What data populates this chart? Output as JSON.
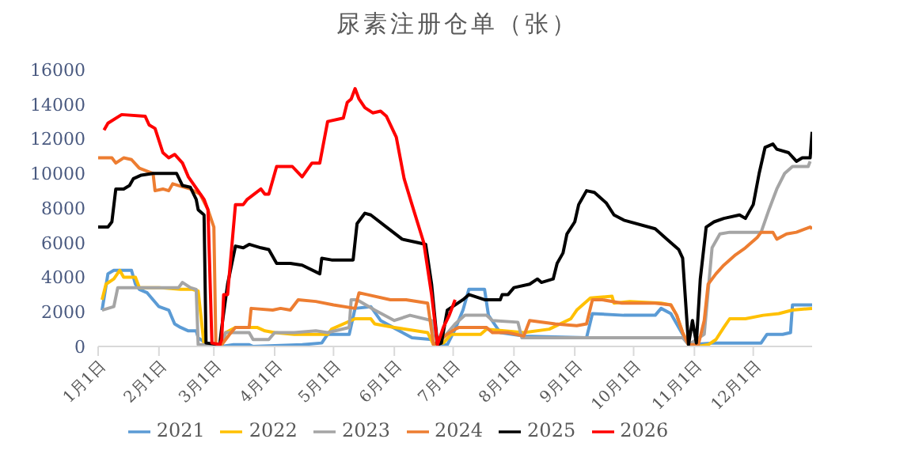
{
  "chart_data": {
    "type": "line",
    "title": "尿素注册仓单（张）",
    "xlim": [
      "--01-01",
      "--12-31"
    ],
    "xticks": [
      {
        "value": "--01-01",
        "label": "1月1日"
      },
      {
        "value": "--02-01",
        "label": "2月1日"
      },
      {
        "value": "--03-01",
        "label": "3月1日"
      },
      {
        "value": "--04-01",
        "label": "4月1日"
      },
      {
        "value": "--05-01",
        "label": "5月1日"
      },
      {
        "value": "--06-01",
        "label": "6月1日"
      },
      {
        "value": "--07-01",
        "label": "7月1日"
      },
      {
        "value": "--08-01",
        "label": "8月1日"
      },
      {
        "value": "--09-01",
        "label": "9月1日"
      },
      {
        "value": "--10-01",
        "label": "10月1日"
      },
      {
        "value": "--11-01",
        "label": "11月1日"
      },
      {
        "value": "--12-01",
        "label": "12月1日"
      }
    ],
    "ylim": [
      0,
      16000
    ],
    "yticks": [
      0,
      2000,
      4000,
      6000,
      8000,
      10000,
      12000,
      14000,
      16000
    ],
    "legend": "bottom",
    "marker": "none",
    "line_style": "solid",
    "series": [
      {
        "name": "2021",
        "color": "#5b9bd5",
        "x": [
          "--01-03",
          "--01-06",
          "--01-09",
          "--01-18",
          "--01-20",
          "--01-22",
          "--01-26",
          "--01-29",
          "--02-01",
          "--02-06",
          "--02-09",
          "--02-12",
          "--02-16",
          "--02-20",
          "--02-21",
          "--02-25",
          "--03-05",
          "--03-11",
          "--03-19",
          "--03-21",
          "--04-15",
          "--04-25",
          "--04-28",
          "--05-09",
          "--05-12",
          "--05-20",
          "--05-25",
          "--06-02",
          "--06-10",
          "--06-20",
          "--06-21",
          "--06-28",
          "--07-02",
          "--07-06",
          "--07-09",
          "--07-17",
          "--07-19",
          "--07-25",
          "--08-06",
          "--09-07",
          "--09-10",
          "--09-26",
          "--10-12",
          "--10-15",
          "--10-20",
          "--10-26",
          "--10-29",
          "--11-11",
          "--12-05",
          "--12-08",
          "--12-16",
          "--12-20",
          "--12-21",
          "--12-31"
        ],
        "values": [
          2100,
          4200,
          4400,
          4400,
          3600,
          3300,
          3100,
          2700,
          2300,
          2100,
          1300,
          1100,
          900,
          900,
          500,
          200,
          0,
          100,
          100,
          0,
          100,
          200,
          700,
          700,
          2200,
          2300,
          1500,
          1000,
          500,
          400,
          100,
          100,
          1000,
          2100,
          3300,
          3300,
          1800,
          800,
          600,
          500,
          1900,
          1800,
          1800,
          2200,
          1900,
          700,
          100,
          200,
          200,
          700,
          700,
          800,
          2400,
          2400
        ]
      },
      {
        "name": "2022",
        "color": "#ffc000",
        "x": [
          "--01-03",
          "--01-05",
          "--01-09",
          "--01-12",
          "--01-14",
          "--01-20",
          "--01-22",
          "--02-01",
          "--02-12",
          "--02-18",
          "--02-21",
          "--02-24",
          "--03-05",
          "--03-07",
          "--03-12",
          "--03-23",
          "--03-27",
          "--04-01",
          "--04-11",
          "--04-28",
          "--04-30",
          "--05-12",
          "--05-20",
          "--05-22",
          "--06-01",
          "--06-18",
          "--06-21",
          "--06-26",
          "--06-30",
          "--07-15",
          "--07-18",
          "--08-06",
          "--08-19",
          "--08-30",
          "--09-02",
          "--09-09",
          "--09-20",
          "--09-21",
          "--09-29",
          "--10-15",
          "--10-20",
          "--10-23",
          "--10-26",
          "--10-29",
          "--11-03",
          "--11-08",
          "--11-12",
          "--11-16",
          "--11-19",
          "--11-27",
          "--12-06",
          "--12-14",
          "--12-21",
          "--12-31"
        ],
        "values": [
          2700,
          3600,
          3900,
          4400,
          4000,
          4000,
          3400,
          3400,
          3300,
          3300,
          3200,
          100,
          100,
          800,
          1100,
          1100,
          900,
          800,
          700,
          700,
          1000,
          1600,
          1600,
          1300,
          1100,
          800,
          100,
          200,
          700,
          700,
          1000,
          800,
          1000,
          1600,
          2100,
          2800,
          2900,
          2500,
          2600,
          2500,
          2400,
          1800,
          800,
          100,
          0,
          100,
          400,
          1100,
          1600,
          1600,
          1800,
          1900,
          2100,
          2200
        ]
      },
      {
        "name": "2023",
        "color": "#a5a5a5",
        "x": [
          "--01-03",
          "--01-09",
          "--01-11",
          "--01-29",
          "--02-11",
          "--02-13",
          "--02-17",
          "--02-20",
          "--02-21",
          "--03-05",
          "--03-07",
          "--03-11",
          "--03-19",
          "--03-21",
          "--03-29",
          "--04-01",
          "--04-11",
          "--04-22",
          "--04-28",
          "--05-09",
          "--05-10",
          "--05-13",
          "--05-22",
          "--06-01",
          "--06-09",
          "--06-20",
          "--06-23",
          "--07-02",
          "--07-07",
          "--07-18",
          "--07-21",
          "--08-03",
          "--08-05",
          "--09-07",
          "--10-26",
          "--10-29",
          "--11-06",
          "--11-10",
          "--11-14",
          "--11-19",
          "--12-05",
          "--12-09",
          "--12-13",
          "--12-17",
          "--12-21",
          "--12-29",
          "--12-30"
        ],
        "values": [
          2100,
          2300,
          3400,
          3400,
          3400,
          3700,
          3400,
          3300,
          100,
          100,
          800,
          800,
          800,
          400,
          400,
          800,
          800,
          900,
          800,
          1100,
          2700,
          2700,
          2100,
          1500,
          1800,
          1500,
          100,
          1300,
          1800,
          1800,
          1500,
          1400,
          500,
          500,
          500,
          100,
          700,
          5700,
          6500,
          6600,
          6600,
          7900,
          9100,
          10000,
          10400,
          10400,
          10700
        ]
      },
      {
        "name": "2024",
        "color": "#ed7d31",
        "x": [
          "--01-01",
          "--01-08",
          "--01-10",
          "--01-14",
          "--01-18",
          "--01-22",
          "--01-29",
          "--01-30",
          "--02-03",
          "--02-06",
          "--02-08",
          "--02-11",
          "--02-17",
          "--02-22",
          "--02-26",
          "--03-01",
          "--03-02",
          "--03-05",
          "--03-09",
          "--03-12",
          "--03-19",
          "--03-20",
          "--03-31",
          "--04-04",
          "--04-09",
          "--04-13",
          "--04-22",
          "--05-01",
          "--05-12",
          "--05-14",
          "--05-18",
          "--05-30",
          "--06-07",
          "--06-18",
          "--06-21",
          "--06-28",
          "--07-02",
          "--07-04",
          "--07-18",
          "--07-21",
          "--07-29",
          "--08-06",
          "--08-09",
          "--08-22",
          "--09-02",
          "--09-07",
          "--09-10",
          "--09-15",
          "--09-25",
          "--10-12",
          "--10-20",
          "--10-23",
          "--10-26",
          "--10-29",
          "--11-03",
          "--11-06",
          "--11-08",
          "--11-12",
          "--11-16",
          "--11-22",
          "--11-27",
          "--12-03",
          "--12-05",
          "--12-11",
          "--12-13",
          "--12-18",
          "--12-23",
          "--12-30",
          "--12-31"
        ],
        "values": [
          10900,
          10900,
          10600,
          10900,
          10800,
          10300,
          10000,
          9000,
          9100,
          9000,
          9400,
          9300,
          9100,
          8800,
          7900,
          6900,
          200,
          100,
          700,
          1100,
          1100,
          2200,
          2100,
          2200,
          2100,
          2700,
          2600,
          2400,
          2200,
          3100,
          3000,
          2700,
          2700,
          2500,
          100,
          700,
          1000,
          1100,
          1100,
          800,
          800,
          600,
          1500,
          1300,
          1200,
          1300,
          2700,
          2700,
          2500,
          2500,
          2400,
          1800,
          800,
          100,
          100,
          1500,
          3600,
          4200,
          4700,
          5300,
          5700,
          6300,
          6600,
          6600,
          6200,
          6500,
          6600,
          6900,
          6800
        ]
      },
      {
        "name": "2025",
        "color": "#000000",
        "x": [
          "--01-01",
          "--01-06",
          "--01-08",
          "--01-10",
          "--01-14",
          "--01-17",
          "--01-19",
          "--01-23",
          "--01-29",
          "--02-10",
          "--02-13",
          "--02-17",
          "--02-20",
          "--02-21",
          "--02-24",
          "--02-25",
          "--03-04",
          "--03-05",
          "--03-08",
          "--03-12",
          "--03-16",
          "--03-19",
          "--03-25",
          "--03-29",
          "--04-02",
          "--04-09",
          "--04-15",
          "--04-24",
          "--04-25",
          "--04-30",
          "--05-11",
          "--05-13",
          "--05-17",
          "--05-20",
          "--05-28",
          "--06-05",
          "--06-13",
          "--06-17",
          "--06-20",
          "--06-23",
          "--06-25",
          "--06-28",
          "--07-06",
          "--07-09",
          "--07-17",
          "--07-25",
          "--07-26",
          "--07-29",
          "--08-01",
          "--08-09",
          "--08-13",
          "--08-15",
          "--08-21",
          "--08-23",
          "--08-26",
          "--08-28",
          "--09-01",
          "--09-03",
          "--09-07",
          "--09-11",
          "--09-17",
          "--09-21",
          "--09-26",
          "--10-12",
          "--10-18",
          "--10-24",
          "--10-26",
          "--10-29",
          "--10-31",
          "--11-02",
          "--11-04",
          "--11-07",
          "--11-11",
          "--11-16",
          "--11-24",
          "--11-27",
          "--12-01",
          "--12-04",
          "--12-07",
          "--12-11",
          "--12-13",
          "--12-19",
          "--12-23",
          "--12-26",
          "--12-30",
          "--12-31"
        ],
        "values": [
          6900,
          6900,
          7200,
          9100,
          9100,
          9300,
          9700,
          9900,
          10000,
          10000,
          9300,
          9200,
          8500,
          7900,
          7600,
          200,
          100,
          1100,
          3600,
          5800,
          5700,
          5900,
          5700,
          5600,
          4800,
          4800,
          4700,
          4200,
          5100,
          5000,
          5000,
          7100,
          7700,
          7600,
          6900,
          6200,
          6000,
          5900,
          3600,
          100,
          200,
          2100,
          2700,
          3000,
          2700,
          2700,
          3000,
          3000,
          3400,
          3600,
          3900,
          3700,
          3900,
          4800,
          5400,
          6500,
          7200,
          8200,
          9000,
          8900,
          8300,
          7600,
          7300,
          6800,
          6200,
          5600,
          5100,
          100,
          1500,
          200,
          3900,
          6900,
          7200,
          7400,
          7600,
          7400,
          8200,
          10000,
          11500,
          11700,
          11400,
          11200,
          10700,
          10900,
          10900,
          12400
        ]
      },
      {
        "name": "2026",
        "color": "#ff0000",
        "x": [
          "--01-04",
          "--01-06",
          "--01-13",
          "--01-25",
          "--01-27",
          "--01-30",
          "--02-03",
          "--02-06",
          "--02-09",
          "--02-13",
          "--02-16",
          "--02-24",
          "--02-26",
          "--02-28",
          "--03-04",
          "--03-05",
          "--03-06",
          "--03-08",
          "--03-12",
          "--03-16",
          "--03-18",
          "--03-25",
          "--03-27",
          "--03-29",
          "--04-02",
          "--04-10",
          "--04-15",
          "--04-20",
          "--04-24",
          "--04-28",
          "--05-06",
          "--05-08",
          "--05-10",
          "--05-12",
          "--05-14",
          "--05-17",
          "--05-21",
          "--05-25",
          "--05-28",
          "--06-02",
          "--06-06",
          "--06-10",
          "--06-16",
          "--06-20",
          "--06-23",
          "--06-26",
          "--06-29",
          "--07-02"
        ],
        "values": [
          12500,
          12900,
          13400,
          13300,
          12800,
          12600,
          11200,
          10900,
          11100,
          10600,
          9800,
          8500,
          7900,
          200,
          100,
          400,
          3000,
          3000,
          8200,
          8200,
          8500,
          9100,
          8800,
          8800,
          10400,
          10400,
          9800,
          10600,
          10600,
          13000,
          13200,
          14100,
          14300,
          14900,
          14300,
          13800,
          13500,
          13600,
          13300,
          12100,
          9700,
          8200,
          6000,
          3000,
          100,
          1100,
          1800,
          2700
        ]
      }
    ]
  }
}
